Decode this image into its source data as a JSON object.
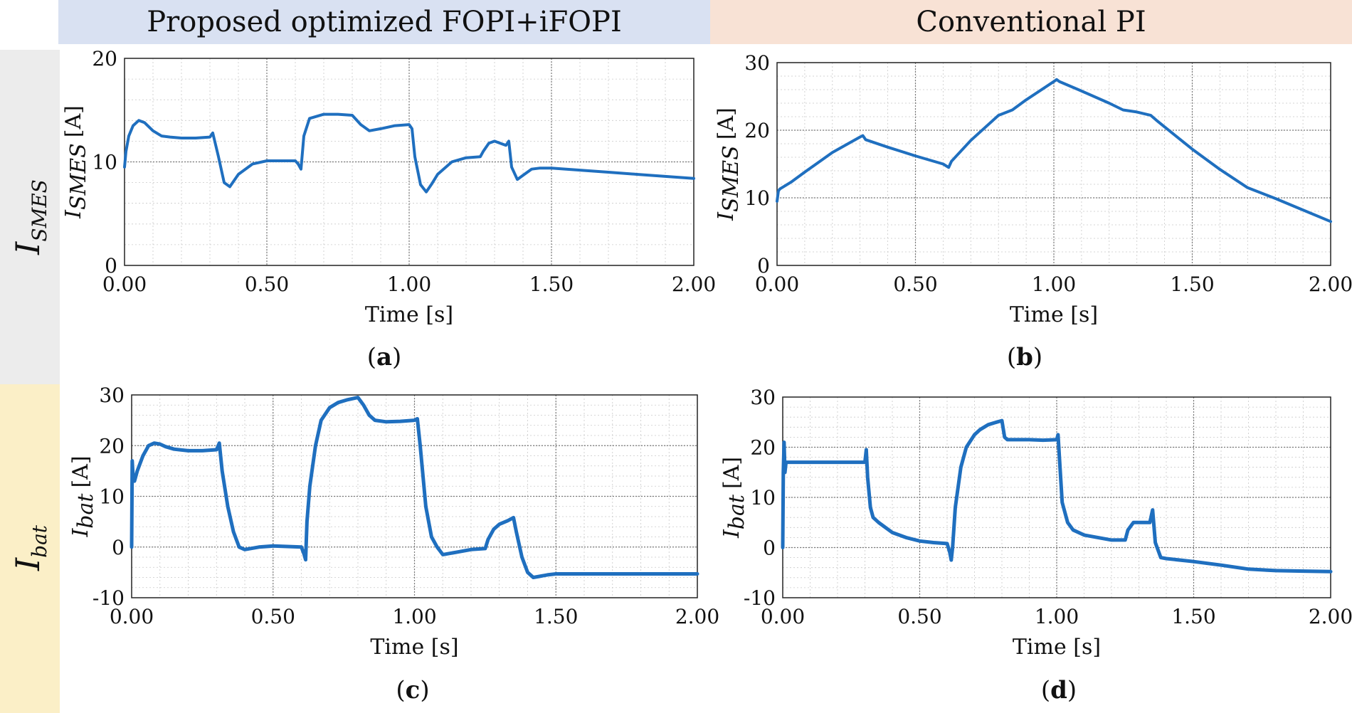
{
  "columns": {
    "left": "Proposed optimized FOPI+iFOPI",
    "right": "Conventional PI"
  },
  "rows": {
    "top": {
      "main": "I",
      "sub": "SMES"
    },
    "bottom": {
      "main": "I",
      "sub": "bat"
    }
  },
  "colors": {
    "line": "#1f6fbf",
    "grid": "#7a7a7a"
  },
  "chart_data": [
    {
      "id": "a",
      "type": "line",
      "panel_label": "a",
      "xlabel": "Time [s]",
      "ylabel": {
        "main": "I",
        "sub": "SMES",
        "unit": "[A]"
      },
      "xlim": [
        0,
        2
      ],
      "ylim": [
        0,
        20
      ],
      "xticks": [
        "0.00",
        "0.50",
        "1.00",
        "1.50",
        "2.00"
      ],
      "yticks": [
        "0",
        "10",
        "20"
      ],
      "x": [
        0,
        0.005,
        0.015,
        0.03,
        0.05,
        0.07,
        0.1,
        0.13,
        0.16,
        0.2,
        0.25,
        0.3,
        0.31,
        0.33,
        0.35,
        0.37,
        0.4,
        0.45,
        0.5,
        0.55,
        0.6,
        0.61,
        0.62,
        0.63,
        0.65,
        0.7,
        0.75,
        0.8,
        0.83,
        0.86,
        0.9,
        0.95,
        1.0,
        1.01,
        1.02,
        1.04,
        1.06,
        1.08,
        1.1,
        1.15,
        1.2,
        1.25,
        1.26,
        1.28,
        1.3,
        1.34,
        1.35,
        1.36,
        1.38,
        1.4,
        1.43,
        1.46,
        1.5,
        1.6,
        1.7,
        1.8,
        1.9,
        2.0
      ],
      "y": [
        9.5,
        11.0,
        12.5,
        13.5,
        14.0,
        13.8,
        13.0,
        12.5,
        12.4,
        12.3,
        12.3,
        12.4,
        12.8,
        10.5,
        8.0,
        7.6,
        8.8,
        9.8,
        10.1,
        10.1,
        10.1,
        9.8,
        9.3,
        12.5,
        14.2,
        14.6,
        14.6,
        14.5,
        13.6,
        13.0,
        13.2,
        13.5,
        13.6,
        13.2,
        10.5,
        7.8,
        7.1,
        7.9,
        8.8,
        10.0,
        10.4,
        10.5,
        11.0,
        11.8,
        12.0,
        11.6,
        12.0,
        9.5,
        8.3,
        8.7,
        9.3,
        9.4,
        9.4,
        9.2,
        9.0,
        8.8,
        8.6,
        8.4
      ]
    },
    {
      "id": "b",
      "type": "line",
      "panel_label": "b",
      "xlabel": "Time [s]",
      "ylabel": {
        "main": "I",
        "sub": "SMES",
        "unit": "[A]"
      },
      "xlim": [
        0,
        2
      ],
      "ylim": [
        0,
        30
      ],
      "xticks": [
        "0.00",
        "0.50",
        "1.00",
        "1.50",
        "2.00"
      ],
      "yticks": [
        "0",
        "10",
        "20",
        "30"
      ],
      "x": [
        0,
        0.005,
        0.01,
        0.05,
        0.1,
        0.2,
        0.3,
        0.31,
        0.32,
        0.4,
        0.5,
        0.6,
        0.62,
        0.63,
        0.7,
        0.8,
        0.85,
        0.9,
        1.0,
        1.01,
        1.02,
        1.1,
        1.2,
        1.25,
        1.3,
        1.35,
        1.37,
        1.4,
        1.5,
        1.6,
        1.7,
        1.8,
        1.9,
        2.0
      ],
      "y": [
        9.5,
        11.0,
        11.3,
        12.3,
        13.8,
        16.7,
        19.0,
        19.2,
        18.6,
        17.5,
        16.2,
        15.0,
        14.5,
        15.4,
        18.5,
        22.2,
        23.0,
        24.5,
        27.2,
        27.5,
        27.2,
        25.8,
        24.0,
        23.0,
        22.7,
        22.2,
        21.5,
        20.5,
        17.2,
        14.2,
        11.5,
        9.9,
        8.2,
        6.5
      ]
    },
    {
      "id": "c",
      "type": "line",
      "panel_label": "c",
      "xlabel": "Time [s]",
      "ylabel": {
        "main": "I",
        "sub": "bat",
        "unit": "[A]"
      },
      "xlim": [
        0,
        2
      ],
      "ylim": [
        -10,
        30
      ],
      "xticks": [
        "0.00",
        "0.50",
        "1.00",
        "1.50",
        "2.00"
      ],
      "yticks": [
        "-10",
        "0",
        "10",
        "20",
        "30"
      ],
      "x": [
        0,
        0.002,
        0.005,
        0.01,
        0.02,
        0.04,
        0.06,
        0.08,
        0.1,
        0.12,
        0.15,
        0.2,
        0.25,
        0.3,
        0.31,
        0.32,
        0.34,
        0.36,
        0.38,
        0.4,
        0.42,
        0.45,
        0.5,
        0.55,
        0.6,
        0.61,
        0.615,
        0.62,
        0.63,
        0.65,
        0.67,
        0.7,
        0.73,
        0.76,
        0.8,
        0.82,
        0.84,
        0.86,
        0.9,
        0.95,
        1.0,
        1.01,
        1.02,
        1.04,
        1.06,
        1.08,
        1.1,
        1.15,
        1.2,
        1.25,
        1.26,
        1.28,
        1.3,
        1.33,
        1.35,
        1.36,
        1.38,
        1.4,
        1.42,
        1.44,
        1.47,
        1.5,
        1.6,
        1.7,
        1.8,
        1.9,
        2.0
      ],
      "y": [
        0,
        17,
        14,
        13,
        15,
        18,
        20,
        20.5,
        20.3,
        19.8,
        19.3,
        19.0,
        19.0,
        19.2,
        20.5,
        15,
        8,
        3,
        0,
        -0.5,
        -0.3,
        0,
        0.2,
        0.1,
        0,
        -1.5,
        -2.5,
        5,
        12,
        20,
        25,
        27.5,
        28.5,
        29,
        29.5,
        28,
        26,
        25,
        24.7,
        24.8,
        25,
        25.3,
        20,
        8,
        2,
        0,
        -1.5,
        -1,
        -0.5,
        -0.3,
        1.5,
        3.5,
        4.5,
        5.2,
        5.8,
        3,
        -2,
        -5,
        -6,
        -5.8,
        -5.5,
        -5.3,
        -5.3,
        -5.3,
        -5.3,
        -5.3,
        -5.3
      ]
    },
    {
      "id": "d",
      "type": "line",
      "panel_label": "d",
      "xlabel": "Time [s]",
      "ylabel": {
        "main": "I",
        "sub": "bat",
        "unit": "[A]"
      },
      "xlim": [
        0,
        2
      ],
      "ylim": [
        -10,
        30
      ],
      "xticks": [
        "0.00",
        "0.50",
        "1.00",
        "1.50",
        "2.00"
      ],
      "yticks": [
        "-10",
        "0",
        "10",
        "20",
        "30"
      ],
      "x": [
        0,
        0.002,
        0.005,
        0.008,
        0.012,
        0.02,
        0.05,
        0.1,
        0.2,
        0.3,
        0.305,
        0.31,
        0.32,
        0.33,
        0.35,
        0.4,
        0.45,
        0.5,
        0.55,
        0.6,
        0.61,
        0.615,
        0.62,
        0.63,
        0.65,
        0.67,
        0.7,
        0.72,
        0.75,
        0.78,
        0.8,
        0.81,
        0.82,
        0.85,
        0.9,
        0.95,
        1.0,
        1.005,
        1.01,
        1.02,
        1.04,
        1.06,
        1.1,
        1.15,
        1.2,
        1.25,
        1.26,
        1.28,
        1.3,
        1.34,
        1.35,
        1.36,
        1.38,
        1.4,
        1.5,
        1.6,
        1.7,
        1.8,
        1.9,
        2.0
      ],
      "y": [
        0,
        15,
        21,
        15,
        17,
        17,
        17,
        17,
        17,
        17,
        19.5,
        14,
        8,
        6,
        5,
        3,
        2,
        1.3,
        1,
        0.8,
        -1,
        -2.5,
        0,
        8,
        16,
        20,
        22.5,
        23.5,
        24.5,
        25,
        25.3,
        22,
        21.5,
        21.5,
        21.5,
        21.4,
        21.5,
        22.5,
        18,
        9,
        5,
        3.5,
        2.5,
        2,
        1.5,
        1.5,
        3.5,
        5,
        5,
        5,
        7.5,
        1,
        -2,
        -2.2,
        -2.8,
        -3.5,
        -4.3,
        -4.6,
        -4.7,
        -4.8
      ]
    }
  ]
}
